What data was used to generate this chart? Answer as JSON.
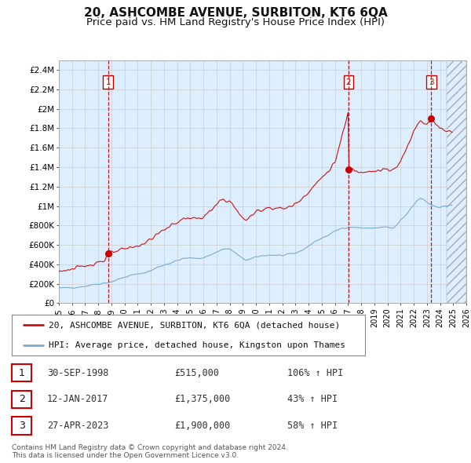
{
  "title": "20, ASHCOMBE AVENUE, SURBITON, KT6 6QA",
  "subtitle": "Price paid vs. HM Land Registry's House Price Index (HPI)",
  "title_fontsize": 11,
  "subtitle_fontsize": 9.5,
  "background_color": "#ffffff",
  "grid_color": "#cccccc",
  "plot_bg_color": "#ddeeff",
  "hpi_color": "#7aaacf",
  "price_color": "#cc1111",
  "ylim": [
    0,
    2500000
  ],
  "yticks": [
    0,
    200000,
    400000,
    600000,
    800000,
    1000000,
    1200000,
    1400000,
    1600000,
    1800000,
    2000000,
    2200000,
    2400000
  ],
  "ytick_labels": [
    "£0",
    "£200K",
    "£400K",
    "£600K",
    "£800K",
    "£1M",
    "£1.2M",
    "£1.4M",
    "£1.6M",
    "£1.8M",
    "£2M",
    "£2.2M",
    "£2.4M"
  ],
  "xmin_year": 1995,
  "xmax_year": 2026,
  "xtick_years": [
    1995,
    1996,
    1997,
    1998,
    1999,
    2000,
    2001,
    2002,
    2003,
    2004,
    2005,
    2006,
    2007,
    2008,
    2009,
    2010,
    2011,
    2012,
    2013,
    2014,
    2015,
    2016,
    2017,
    2018,
    2019,
    2020,
    2021,
    2022,
    2023,
    2024,
    2025,
    2026
  ],
  "sales": [
    {
      "year": 1998.75,
      "price": 515000,
      "label": "1",
      "date": "30-SEP-1998",
      "pct": "106%"
    },
    {
      "year": 2017.04,
      "price": 1375000,
      "label": "2",
      "date": "12-JAN-2017",
      "pct": "43%"
    },
    {
      "year": 2023.32,
      "price": 1900000,
      "label": "3",
      "date": "27-APR-2023",
      "pct": "58%"
    }
  ],
  "legend_line1": "20, ASHCOMBE AVENUE, SURBITON, KT6 6QA (detached house)",
  "legend_line2": "HPI: Average price, detached house, Kingston upon Thames",
  "table_rows": [
    {
      "num": "1",
      "date": "30-SEP-1998",
      "price": "£515,000",
      "pct": "106% ↑ HPI"
    },
    {
      "num": "2",
      "date": "12-JAN-2017",
      "price": "£1,375,000",
      "pct": "43% ↑ HPI"
    },
    {
      "num": "3",
      "date": "27-APR-2023",
      "price": "£1,900,000",
      "pct": "58% ↑ HPI"
    }
  ],
  "footer": "Contains HM Land Registry data © Crown copyright and database right 2024.\nThis data is licensed under the Open Government Licence v3.0."
}
